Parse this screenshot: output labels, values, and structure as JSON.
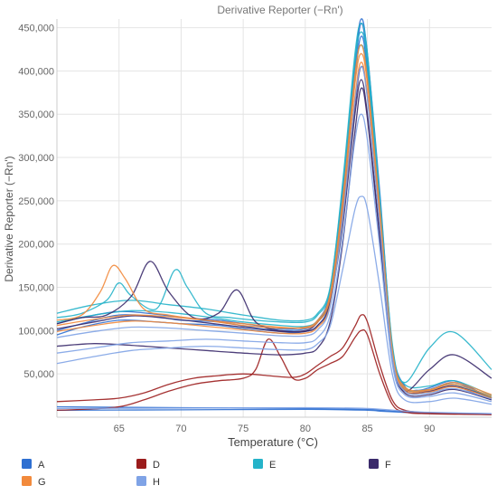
{
  "chart_data": {
    "type": "line",
    "title": "Derivative Reporter (−Rn')",
    "xlabel": "Temperature (°C)",
    "ylabel": "Derivative Reporter (−Rn')",
    "xlim": [
      60,
      95
    ],
    "ylim": [
      0,
      460000
    ],
    "x_ticks": [
      65,
      70,
      75,
      80,
      85,
      90
    ],
    "x_tick_labels": [
      "65",
      "70",
      "75",
      "80",
      "85",
      "90"
    ],
    "y_ticks": [
      50000,
      100000,
      150000,
      200000,
      250000,
      300000,
      350000,
      400000,
      450000
    ],
    "y_tick_labels": [
      "50,000",
      "100,000",
      "150,000",
      "200,000",
      "250,000",
      "300,000",
      "350,000",
      "400,000",
      "450,000"
    ],
    "legend_position": "bottom",
    "legend": [
      {
        "label": "A",
        "color": "#2e6fd1"
      },
      {
        "label": "D",
        "color": "#9b1c1c"
      },
      {
        "label": "E",
        "color": "#25b3c9"
      },
      {
        "label": "F",
        "color": "#3a2a6b"
      },
      {
        "label": "G",
        "color": "#f28a3c"
      },
      {
        "label": "H",
        "color": "#7fa3e6"
      }
    ],
    "series": [
      {
        "group": "A",
        "color": "#2e6fd1",
        "x": [
          60,
          62,
          65,
          68,
          70,
          73,
          76,
          78,
          80,
          81,
          82,
          83,
          84,
          84.5,
          85,
          86,
          87,
          88,
          89,
          90,
          92,
          94,
          95
        ],
        "y": [
          100000,
          108000,
          118000,
          116000,
          112000,
          110000,
          103000,
          100000,
          102000,
          110000,
          140000,
          250000,
          400000,
          455000,
          410000,
          250000,
          80000,
          35000,
          30000,
          32000,
          40000,
          28000,
          22000
        ]
      },
      {
        "group": "A",
        "color": "#2e6fd1",
        "x": [
          60,
          62,
          65,
          68,
          70,
          73,
          76,
          78,
          80,
          81,
          82,
          83,
          84,
          84.5,
          85,
          86,
          87,
          88,
          89,
          90,
          92,
          94,
          95
        ],
        "y": [
          95000,
          104000,
          112000,
          110000,
          108000,
          106000,
          100000,
          97000,
          99000,
          106000,
          135000,
          240000,
          390000,
          440000,
          400000,
          240000,
          75000,
          32000,
          28000,
          30000,
          36000,
          25000,
          20000
        ]
      },
      {
        "group": "A",
        "color": "#2e6fd1",
        "x": [
          60,
          62,
          65,
          68,
          70,
          73,
          76,
          78,
          80,
          81,
          82,
          83,
          84,
          84.5,
          85,
          86,
          87,
          88,
          89,
          90,
          92,
          94,
          95
        ],
        "y": [
          108000,
          115000,
          122000,
          119000,
          115000,
          112000,
          106000,
          102000,
          104000,
          112000,
          145000,
          260000,
          410000,
          460000,
          420000,
          260000,
          82000,
          36000,
          31000,
          34000,
          42000,
          29000,
          22000
        ]
      },
      {
        "group": "A",
        "color": "#2e6fd1",
        "x": [
          60,
          70,
          80,
          85,
          86,
          88,
          90,
          95
        ],
        "y": [
          12000,
          11000,
          10000,
          9000,
          8000,
          6000,
          5000,
          4000
        ]
      },
      {
        "group": "A",
        "color": "#2e6fd1",
        "x": [
          60,
          70,
          80,
          85,
          86,
          88,
          90,
          95
        ],
        "y": [
          8000,
          8500,
          9000,
          8000,
          7000,
          5500,
          4500,
          3500
        ]
      },
      {
        "group": "D",
        "color": "#9b1c1c",
        "x": [
          60,
          63,
          65,
          67,
          69,
          71,
          73,
          75,
          77,
          79,
          80,
          81,
          82,
          83,
          84,
          84.5,
          85,
          86,
          87,
          88,
          90,
          92,
          95
        ],
        "y": [
          18000,
          20000,
          22000,
          28000,
          38000,
          45000,
          48000,
          50000,
          48000,
          46000,
          50000,
          60000,
          70000,
          80000,
          105000,
          118000,
          110000,
          60000,
          20000,
          8000,
          5000,
          4000,
          3000
        ]
      },
      {
        "group": "D",
        "color": "#9b1c1c",
        "x": [
          60,
          62,
          65,
          67,
          69,
          71,
          73,
          75,
          76,
          77,
          78,
          79,
          80,
          81,
          82,
          83,
          84,
          84.5,
          85,
          86,
          87,
          88,
          90,
          95
        ],
        "y": [
          8000,
          9000,
          12000,
          20000,
          30000,
          38000,
          42000,
          45000,
          55000,
          90000,
          70000,
          45000,
          45000,
          55000,
          62000,
          70000,
          92000,
          100000,
          95000,
          50000,
          15000,
          6000,
          4000,
          3000
        ]
      },
      {
        "group": "E",
        "color": "#25b3c9",
        "x": [
          60,
          62,
          64,
          65,
          66,
          68,
          69.5,
          70.5,
          72,
          74,
          76,
          78,
          80,
          81,
          82,
          83,
          84,
          84.5,
          85,
          86,
          87,
          88,
          90,
          92,
          95
        ],
        "y": [
          115000,
          120000,
          135000,
          155000,
          140000,
          125000,
          170000,
          150000,
          120000,
          115000,
          112000,
          110000,
          110000,
          118000,
          148000,
          270000,
          420000,
          455000,
          420000,
          255000,
          85000,
          40000,
          80000,
          98000,
          55000
        ]
      },
      {
        "group": "E",
        "color": "#25b3c9",
        "x": [
          60,
          63,
          66,
          69,
          72,
          75,
          78,
          80,
          81,
          82,
          83,
          84,
          84.5,
          85,
          86,
          87,
          88,
          90,
          92,
          95
        ],
        "y": [
          120000,
          130000,
          135000,
          130000,
          125000,
          118000,
          112000,
          112000,
          120000,
          150000,
          265000,
          410000,
          445000,
          410000,
          250000,
          80000,
          38000,
          36000,
          42000,
          25000
        ]
      },
      {
        "group": "E",
        "color": "#25b3c9",
        "x": [
          60,
          63,
          66,
          69,
          72,
          75,
          78,
          80,
          81,
          82,
          83,
          84,
          84.5,
          85,
          86,
          87,
          88,
          90,
          92,
          95
        ],
        "y": [
          110000,
          118000,
          123000,
          121000,
          116000,
          110000,
          106000,
          105000,
          112000,
          140000,
          250000,
          395000,
          430000,
          395000,
          240000,
          76000,
          34000,
          32000,
          38000,
          23000
        ]
      },
      {
        "group": "F",
        "color": "#3a2a6b",
        "x": [
          60,
          62,
          64,
          66,
          67.5,
          69,
          71,
          73,
          74.5,
          76,
          78,
          80,
          81,
          82,
          83,
          84,
          84.5,
          85,
          86,
          87,
          88,
          90,
          92,
          95
        ],
        "y": [
          108000,
          115000,
          118000,
          140000,
          180000,
          145000,
          115000,
          120000,
          147000,
          110000,
          100000,
          100000,
          110000,
          135000,
          220000,
          350000,
          390000,
          350000,
          210000,
          70000,
          30000,
          55000,
          72000,
          45000
        ]
      },
      {
        "group": "F",
        "color": "#3a2a6b",
        "x": [
          60,
          63,
          66,
          69,
          72,
          75,
          78,
          80,
          81,
          82,
          83,
          84,
          84.5,
          85,
          86,
          87,
          88,
          90,
          92,
          95
        ],
        "y": [
          82000,
          85000,
          83000,
          80000,
          77000,
          74000,
          72000,
          74000,
          80000,
          110000,
          200000,
          330000,
          380000,
          345000,
          205000,
          68000,
          28000,
          26000,
          32000,
          20000
        ]
      },
      {
        "group": "F",
        "color": "#3a2a6b",
        "x": [
          60,
          63,
          66,
          69,
          72,
          75,
          78,
          80,
          81,
          82,
          83,
          84,
          84.5,
          85,
          86,
          87,
          88,
          90,
          92,
          95
        ],
        "y": [
          102000,
          110000,
          117000,
          114000,
          109000,
          104000,
          99000,
          99000,
          106000,
          132000,
          230000,
          360000,
          405000,
          370000,
          225000,
          72000,
          31000,
          30000,
          36000,
          22000
        ]
      },
      {
        "group": "G",
        "color": "#f28a3c",
        "x": [
          60,
          62,
          63.5,
          64.5,
          65.5,
          67,
          69,
          72,
          75,
          78,
          80,
          81,
          82,
          83,
          84,
          84.5,
          85,
          86,
          87,
          88,
          90,
          92,
          95
        ],
        "y": [
          112000,
          118000,
          145000,
          175000,
          160000,
          125000,
          118000,
          112000,
          106000,
          103000,
          104000,
          112000,
          142000,
          250000,
          395000,
          430000,
          390000,
          240000,
          78000,
          35000,
          32000,
          40000,
          26000
        ]
      },
      {
        "group": "G",
        "color": "#f28a3c",
        "x": [
          60,
          63,
          66,
          69,
          72,
          75,
          78,
          80,
          81,
          82,
          83,
          84,
          84.5,
          85,
          86,
          87,
          88,
          90,
          92,
          95
        ],
        "y": [
          106000,
          113000,
          118000,
          116000,
          112000,
          108000,
          104000,
          103000,
          110000,
          138000,
          245000,
          385000,
          420000,
          385000,
          235000,
          75000,
          33000,
          31000,
          38000,
          24000
        ]
      },
      {
        "group": "G",
        "color": "#f28a3c",
        "x": [
          60,
          63,
          66,
          69,
          72,
          75,
          78,
          80,
          81,
          82,
          83,
          84,
          84.5,
          85,
          86,
          87,
          88,
          90,
          92,
          95
        ],
        "y": [
          99000,
          106000,
          111000,
          109000,
          105000,
          101000,
          97000,
          97000,
          104000,
          130000,
          232000,
          370000,
          410000,
          372000,
          226000,
          72000,
          31000,
          29000,
          35000,
          22000
        ]
      },
      {
        "group": "H",
        "color": "#7fa3e6",
        "x": [
          60,
          63,
          66,
          69,
          72,
          75,
          78,
          80,
          81,
          82,
          83,
          84,
          84.5,
          85,
          86,
          87,
          88,
          90,
          92,
          95
        ],
        "y": [
          62000,
          70000,
          77000,
          80000,
          82000,
          80000,
          78000,
          78000,
          85000,
          105000,
          170000,
          240000,
          255000,
          240000,
          150000,
          50000,
          20000,
          18000,
          22000,
          15000
        ]
      },
      {
        "group": "H",
        "color": "#7fa3e6",
        "x": [
          60,
          63,
          66,
          69,
          72,
          75,
          78,
          80,
          81,
          82,
          83,
          84,
          84.5,
          85,
          86,
          87,
          88,
          90,
          92,
          95
        ],
        "y": [
          74000,
          80000,
          86000,
          88000,
          90000,
          88000,
          86000,
          86000,
          92000,
          118000,
          205000,
          320000,
          350000,
          320000,
          196000,
          62000,
          26000,
          24000,
          28000,
          18000
        ]
      },
      {
        "group": "H",
        "color": "#7fa3e6",
        "x": [
          60,
          63,
          66,
          69,
          72,
          75,
          78,
          80,
          81,
          82,
          83,
          84,
          84.5,
          85,
          86,
          87,
          88,
          90,
          92,
          95
        ],
        "y": [
          92000,
          99000,
          104000,
          103000,
          100000,
          97000,
          94000,
          94000,
          101000,
          128000,
          228000,
          365000,
          405000,
          368000,
          222000,
          70000,
          30000,
          28000,
          33000,
          21000
        ]
      },
      {
        "group": "H",
        "color": "#7fa3e6",
        "x": [
          60,
          70,
          80,
          85,
          88,
          90,
          95
        ],
        "y": [
          10000,
          10500,
          11000,
          10000,
          7000,
          5500,
          4000
        ]
      }
    ]
  }
}
